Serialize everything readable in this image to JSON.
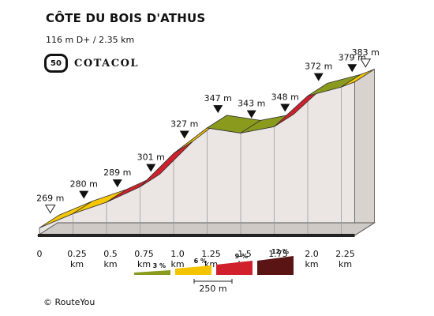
{
  "header": {
    "title": "CÔTE DU BOIS D'ATHUS",
    "subtitle": "116 m D+ / 2.35 km"
  },
  "logo": {
    "badge_number": "50",
    "text": "COTACOL"
  },
  "credit": "© RouteYou",
  "chart_data": {
    "type": "area",
    "subtype": "elevation-profile",
    "x_unit": "km",
    "y_unit": "m",
    "points": [
      {
        "km": 0.0,
        "elev": 269,
        "label": "269 m",
        "marker": "open"
      },
      {
        "km": 0.25,
        "elev": 280,
        "label": "280 m",
        "marker": "filled"
      },
      {
        "km": 0.5,
        "elev": 289,
        "label": "289 m",
        "marker": "filled"
      },
      {
        "km": 0.75,
        "elev": 301,
        "label": "301 m",
        "marker": "filled"
      },
      {
        "km": 1.0,
        "elev": 327,
        "label": "327 m",
        "marker": "filled"
      },
      {
        "km": 1.25,
        "elev": 347,
        "label": "347 m",
        "marker": "filled"
      },
      {
        "km": 1.5,
        "elev": 343,
        "label": "343 m",
        "marker": "filled"
      },
      {
        "km": 1.75,
        "elev": 348,
        "label": "348 m",
        "marker": "filled"
      },
      {
        "km": 2.0,
        "elev": 372,
        "label": "372 m",
        "marker": "filled"
      },
      {
        "km": 2.25,
        "elev": 379,
        "label": "379 m",
        "marker": "filled"
      },
      {
        "km": 2.35,
        "elev": 383,
        "label": "383 m",
        "marker": "open"
      }
    ],
    "x_ticks": [
      {
        "km": 0.0,
        "label": "0"
      },
      {
        "km": 0.25,
        "label": "0.25 km"
      },
      {
        "km": 0.5,
        "label": "0.5 km"
      },
      {
        "km": 0.75,
        "label": "0.75 km"
      },
      {
        "km": 1.0,
        "label": "1.0 km"
      },
      {
        "km": 1.25,
        "label": "1.25 km"
      },
      {
        "km": 1.5,
        "label": "1.5 km"
      },
      {
        "km": 1.75,
        "label": "1.75 km"
      },
      {
        "km": 2.0,
        "label": "2.0 km"
      },
      {
        "km": 2.25,
        "label": "2.25 km"
      }
    ],
    "segment_classes": [
      1,
      1,
      2,
      2,
      1,
      0,
      0,
      2,
      0,
      1
    ],
    "gradient_legend": [
      {
        "label": "3 %",
        "color": "#8a9a1c"
      },
      {
        "label": "6 %",
        "color": "#f5c400"
      },
      {
        "label": "9 %",
        "color": "#d0202c"
      },
      {
        "label": "12 %",
        "color": "#5a1414"
      }
    ],
    "class_colors": {
      "0": {
        "top": "#8a9a1c",
        "side": "#7a8a12"
      },
      "1": {
        "top": "#f7c800",
        "side": "#f5c400"
      },
      "2": {
        "top": "#d0202c",
        "side": "#c71c27"
      },
      "3": {
        "top": "#f0a400",
        "side": "#eaa000"
      }
    },
    "scale_label": "250 m"
  }
}
